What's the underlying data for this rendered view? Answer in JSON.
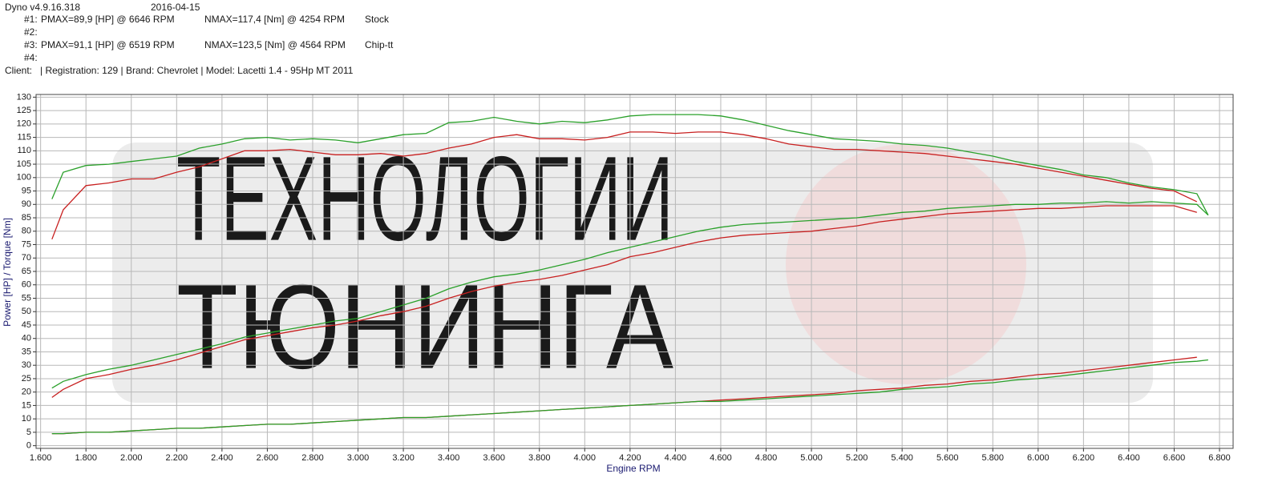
{
  "chart_data": {
    "type": "line",
    "info": {
      "software": "Dyno v4.9.16.318",
      "date": "2016-04-15",
      "runs": [
        {
          "label": "#1:",
          "power": "PMAX=89,9 [HP] @ 6646 RPM",
          "torque": "NMAX=117,4 [Nm] @ 4254 RPM",
          "name": "Stock"
        },
        {
          "label": "#2:"
        },
        {
          "label": "#3:",
          "power": "PMAX=91,1 [HP] @ 6519 RPM",
          "torque": "NMAX=123,5 [Nm] @ 4564 RPM",
          "name": "Chip-tt"
        },
        {
          "label": "#4:"
        }
      ],
      "client_label": "Client:",
      "client": "| Registration: 129 | Brand: Chevrolet | Model: Lacetti 1.4 - 95Hp MT 2011"
    },
    "watermark": [
      "ТЕХНОЛОГИИ",
      "ТЮНИНГА"
    ],
    "x_label": "Engine RPM",
    "y_label": "Power [HP] / Torque [Nm]",
    "x": [
      1650,
      1700,
      1800,
      1900,
      2000,
      2100,
      2200,
      2300,
      2400,
      2500,
      2600,
      2700,
      2800,
      2900,
      3000,
      3100,
      3200,
      3300,
      3400,
      3500,
      3600,
      3700,
      3800,
      3900,
      4000,
      4100,
      4200,
      4300,
      4400,
      4500,
      4600,
      4700,
      4800,
      4900,
      5000,
      5100,
      5200,
      5300,
      5400,
      5500,
      5600,
      5700,
      5800,
      5900,
      6000,
      6100,
      6200,
      6300,
      6400,
      6500,
      6600,
      6700,
      6750
    ],
    "series": [
      {
        "color": "#2aa02a",
        "values": [
          92,
          102,
          104.5,
          105,
          106,
          107,
          108,
          111,
          112.5,
          114.5,
          115,
          114,
          114.5,
          114,
          113,
          114.5,
          116,
          116.5,
          120.5,
          121,
          122.5,
          121,
          120,
          121,
          120.5,
          121.5,
          123,
          123.5,
          123.5,
          123.5,
          123,
          121.5,
          119.5,
          117.5,
          116,
          114.5,
          114,
          113.5,
          112.5,
          112,
          111,
          109.5,
          108,
          106,
          104.5,
          103,
          101,
          100,
          98,
          96.5,
          95.5,
          94,
          86
        ]
      },
      {
        "color": "#c82020",
        "values": [
          77,
          88,
          97,
          98,
          99.5,
          99.5,
          102,
          104,
          107,
          110,
          110,
          110.5,
          109.5,
          108.5,
          108.5,
          109,
          108,
          109,
          111,
          112.5,
          115,
          116,
          114.5,
          114.5,
          114,
          115,
          117,
          117,
          116.5,
          117,
          117,
          116,
          114.5,
          112.5,
          111.5,
          110.5,
          110.5,
          110,
          109.5,
          109,
          108,
          107,
          106,
          105,
          103.5,
          102,
          100.5,
          99,
          97.5,
          96,
          95,
          91,
          null
        ]
      },
      {
        "color": "#2aa02a",
        "values": [
          21.5,
          24,
          26.5,
          28.5,
          30,
          32,
          34,
          36,
          38,
          40.5,
          42,
          43.5,
          45,
          46.5,
          47.5,
          50,
          52.5,
          55,
          58.5,
          61,
          63,
          64,
          65.5,
          67.5,
          69.5,
          72,
          74,
          76,
          78,
          80,
          81.5,
          82.5,
          83,
          83.5,
          84,
          84.5,
          85,
          86,
          87,
          87.5,
          88.5,
          89,
          89.5,
          90,
          90,
          90.5,
          90.5,
          91,
          90.5,
          91,
          90.5,
          90,
          86
        ]
      },
      {
        "color": "#c82020",
        "values": [
          18,
          21,
          25,
          26.5,
          28.5,
          30,
          32,
          34.5,
          37,
          39.5,
          41,
          42.5,
          44,
          45,
          46.5,
          48.5,
          50,
          52,
          55,
          57.5,
          59.5,
          61,
          62,
          63.5,
          65.5,
          67.5,
          70.5,
          72,
          74,
          76,
          77.5,
          78.5,
          79,
          79.5,
          80,
          81,
          82,
          83.5,
          84.5,
          85.5,
          86.5,
          87,
          87.5,
          88,
          88.5,
          88.5,
          89,
          89.5,
          89.5,
          89.5,
          89.5,
          87,
          null
        ]
      },
      {
        "color": "#c82020",
        "values": [
          4.5,
          4.5,
          5,
          5,
          5.5,
          6,
          6.5,
          6.5,
          7,
          7.5,
          8,
          8,
          8.5,
          9,
          9.5,
          10,
          10.5,
          10.5,
          11,
          11.5,
          12,
          12.5,
          13,
          13.5,
          14,
          14.5,
          15,
          15.5,
          16,
          16.5,
          17,
          17.5,
          18,
          18.5,
          19,
          19.5,
          20.5,
          21,
          21.5,
          22.5,
          23,
          24,
          24.5,
          25.5,
          26.5,
          27,
          28,
          29,
          30,
          31,
          32,
          33,
          null
        ]
      },
      {
        "color": "#2aa02a",
        "values": [
          4.5,
          4.5,
          5,
          5,
          5.5,
          6,
          6.5,
          6.5,
          7,
          7.5,
          8,
          8,
          8.5,
          9,
          9.5,
          10,
          10.5,
          10.5,
          11,
          11.5,
          12,
          12.5,
          13,
          13.5,
          14,
          14.5,
          15,
          15.5,
          16,
          16.5,
          16.5,
          17,
          17.5,
          18,
          18.5,
          19,
          19.5,
          20,
          21,
          21.5,
          22,
          23,
          23.5,
          24.5,
          25,
          26,
          27,
          28,
          29,
          30,
          31,
          31.5,
          32
        ]
      }
    ],
    "xlim": [
      1580,
      6860
    ],
    "ylim": [
      -1,
      131
    ],
    "xticks": [
      {
        "value": 1600,
        "label": "1.600"
      },
      {
        "value": 1800,
        "label": "1.800"
      },
      {
        "value": 2000,
        "label": "2.000"
      },
      {
        "value": 2200,
        "label": "2.200"
      },
      {
        "value": 2400,
        "label": "2.400"
      },
      {
        "value": 2600,
        "label": "2.600"
      },
      {
        "value": 2800,
        "label": "2.800"
      },
      {
        "value": 3000,
        "label": "3.000"
      },
      {
        "value": 3200,
        "label": "3.200"
      },
      {
        "value": 3400,
        "label": "3.400"
      },
      {
        "value": 3600,
        "label": "3.600"
      },
      {
        "value": 3800,
        "label": "3.800"
      },
      {
        "value": 4000,
        "label": "4.000"
      },
      {
        "value": 4200,
        "label": "4.200"
      },
      {
        "value": 4400,
        "label": "4.400"
      },
      {
        "value": 4600,
        "label": "4.600"
      },
      {
        "value": 4800,
        "label": "4.800"
      },
      {
        "value": 5000,
        "label": "5.000"
      },
      {
        "value": 5200,
        "label": "5.200"
      },
      {
        "value": 5400,
        "label": "5.400"
      },
      {
        "value": 5600,
        "label": "5.600"
      },
      {
        "value": 5800,
        "label": "5.800"
      },
      {
        "value": 6000,
        "label": "6.000"
      },
      {
        "value": 6200,
        "label": "6.200"
      },
      {
        "value": 6400,
        "label": "6.400"
      },
      {
        "value": 6600,
        "label": "6.600"
      },
      {
        "value": 6800,
        "label": "6.800"
      }
    ],
    "yticks": [
      0,
      5,
      10,
      15,
      20,
      25,
      30,
      35,
      40,
      45,
      50,
      55,
      60,
      65,
      70,
      75,
      80,
      85,
      90,
      95,
      100,
      105,
      110,
      115,
      120,
      125,
      130
    ],
    "grid": true
  }
}
